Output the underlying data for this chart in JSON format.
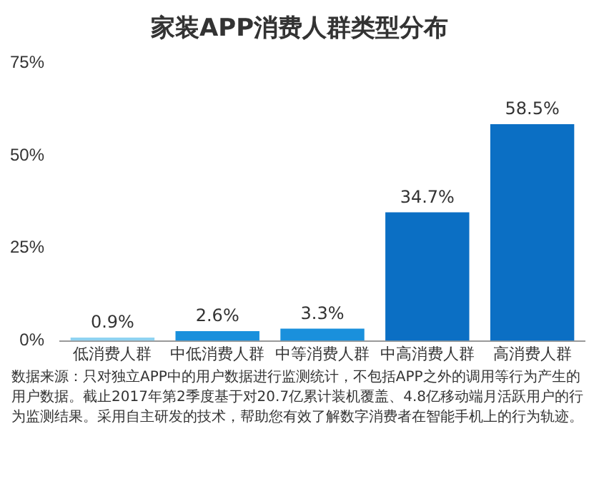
{
  "chart_data": {
    "type": "bar",
    "title": "家装APP消费人群类型分布",
    "categories": [
      "低消费人群",
      "中低消费人群",
      "中等消费人群",
      "中高消费人群",
      "高消费人群"
    ],
    "values": [
      0.9,
      2.6,
      3.3,
      34.7,
      58.5
    ],
    "colors": [
      "#8fd3f2",
      "#1a90dc",
      "#1a90dc",
      "#0b6fc4",
      "#0b6fc4"
    ],
    "value_labels": [
      "0.9%",
      "2.6%",
      "3.3%",
      "34.7%",
      "58.5%"
    ],
    "ylim": [
      0,
      75
    ],
    "yticks": [
      {
        "value": 0,
        "label": "0%"
      },
      {
        "value": 25,
        "label": "25%"
      },
      {
        "value": 50,
        "label": "50%"
      },
      {
        "value": 75,
        "label": "75%"
      }
    ],
    "grid": false,
    "legend": false,
    "annotations": [
      "数据来源：只对独立APP中的用户数据进行监测统计，不包括APP之外的调用等行为产生的用户数据。截止2017年第2季度基于对20.7亿累计装机覆盖、4.8亿移动端月活跃用户的行为监测结果。采用自主研发的技术，帮助您有效了解数字消费者在智能手机上的行为轨迹。"
    ]
  }
}
